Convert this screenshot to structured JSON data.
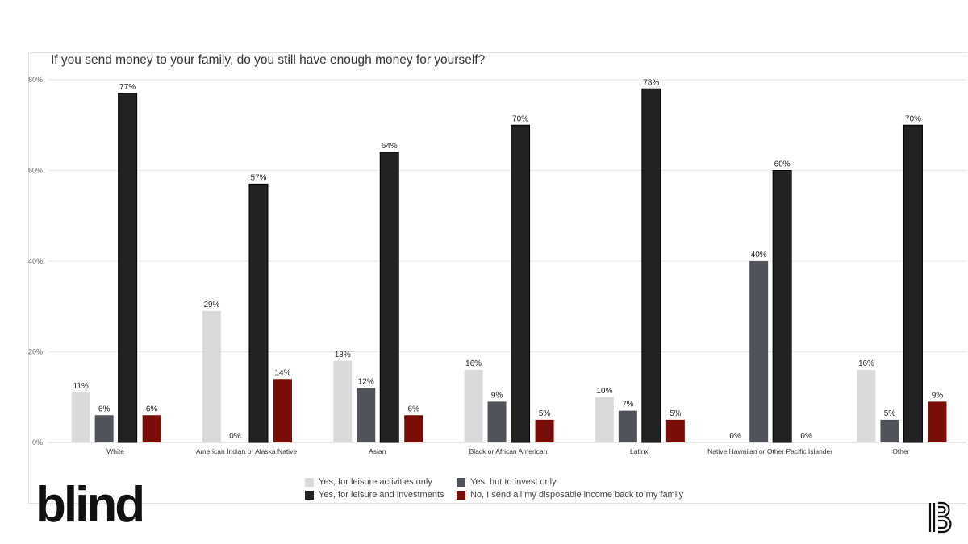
{
  "brand": {
    "logo_text": "blind"
  },
  "chart_data": {
    "type": "bar",
    "title": "If you send money to your family, do you still have enough money for yourself?",
    "categories": [
      "White",
      "American Indian or Alaska Native",
      "Asian",
      "Black or African American",
      "Latinx",
      "Native Hawaiian or Other Pacific Islander",
      "Other"
    ],
    "series": [
      {
        "name": "Yes, for leisure activities only",
        "color": "#dadadc",
        "values": [
          11,
          29,
          18,
          16,
          10,
          0,
          16
        ]
      },
      {
        "name": "Yes, but to invest only",
        "color": "#50545a",
        "values": [
          6,
          0,
          12,
          9,
          7,
          40,
          5
        ]
      },
      {
        "name": "Yes, for leisure and investments",
        "color": "#222222",
        "values": [
          77,
          57,
          64,
          70,
          78,
          60,
          70
        ]
      },
      {
        "name": "No, I send all my disposable income back to my family",
        "color": "#7a0d08",
        "values": [
          6,
          14,
          6,
          5,
          5,
          0,
          9
        ]
      }
    ],
    "yticks": [
      "0%",
      "20%",
      "40%",
      "60%",
      "80%"
    ],
    "ylim": [
      0,
      80
    ],
    "grid": true,
    "legend": "bottom",
    "value_format": "percent"
  }
}
